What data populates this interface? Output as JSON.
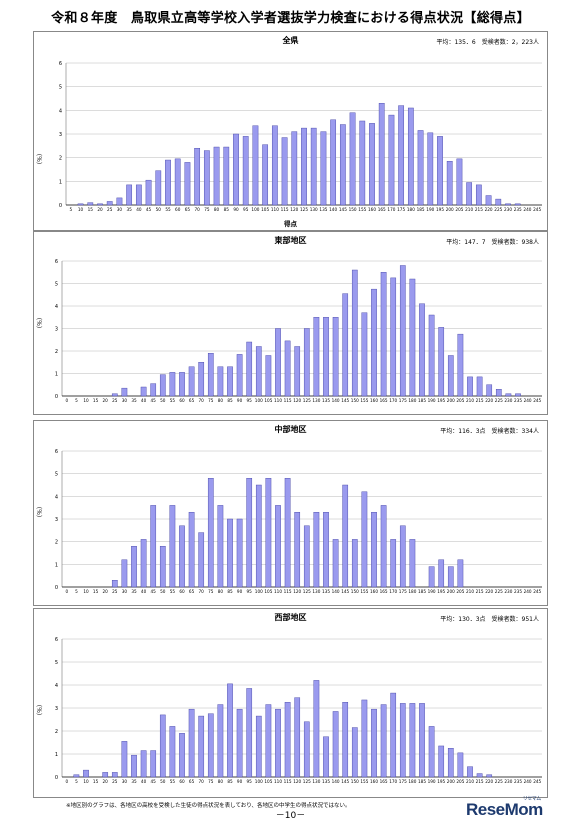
{
  "page": {
    "title": "令和８年度　鳥取県立高等学校入学者選抜学力検査における得点状況【総得点】",
    "note": "※地区別のグラフは、各地区の高校を受検した生徒の得点状況を表しており、各地区の中学生の得点状況ではない。",
    "page_number": "－10－",
    "logo": "ReseMom",
    "logo_small": "リセマム"
  },
  "colors": {
    "bar_fill": "#9a9aee",
    "bar_stroke": "#3c3ca0",
    "grid": "#b8b8b8",
    "axis": "#000000"
  },
  "chart_data": [
    {
      "type": "bar",
      "title": "全県",
      "stats": "平均：135．6　受検者数：2，223人",
      "ylabel": "（％）",
      "xlabel": "得点",
      "ylim": [
        0,
        6
      ],
      "yticks": [
        "0",
        "1",
        "2",
        "3",
        "4",
        "5",
        "6"
      ],
      "grid": true,
      "categories": [
        "5",
        "10",
        "15",
        "20",
        "25",
        "30",
        "35",
        "40",
        "45",
        "50",
        "55",
        "60",
        "65",
        "70",
        "75",
        "80",
        "85",
        "90",
        "95",
        "100",
        "105",
        "110",
        "115",
        "120",
        "125",
        "130",
        "135",
        "140",
        "145",
        "150",
        "155",
        "160",
        "165",
        "170",
        "175",
        "180",
        "185",
        "190",
        "195",
        "200",
        "205",
        "210",
        "215",
        "220",
        "225",
        "230",
        "235",
        "240",
        "245"
      ],
      "values": [
        0,
        0.05,
        0.1,
        0.05,
        0.15,
        0.3,
        0.85,
        0.85,
        1.05,
        1.45,
        1.9,
        1.95,
        1.8,
        2.4,
        2.3,
        2.45,
        2.45,
        3.0,
        2.9,
        3.35,
        2.55,
        3.35,
        2.85,
        3.1,
        3.25,
        3.25,
        3.1,
        3.6,
        3.4,
        3.9,
        3.55,
        3.45,
        4.3,
        3.8,
        4.2,
        4.1,
        3.15,
        3.05,
        2.9,
        1.85,
        1.95,
        0.95,
        0.85,
        0.4,
        0.25,
        0.05,
        0.05,
        0,
        0
      ]
    },
    {
      "type": "bar",
      "title": "東部地区",
      "stats": "平均：147．7　受検者数：938人",
      "ylabel": "（％）",
      "xlabel": "得点",
      "ylim": [
        0,
        6
      ],
      "yticks": [
        "0",
        "1",
        "2",
        "3",
        "4",
        "5",
        "6"
      ],
      "grid": true,
      "categories": [
        "0",
        "5",
        "10",
        "15",
        "20",
        "25",
        "30",
        "35",
        "40",
        "45",
        "50",
        "55",
        "60",
        "65",
        "70",
        "75",
        "80",
        "85",
        "90",
        "95",
        "100",
        "105",
        "110",
        "115",
        "120",
        "125",
        "130",
        "135",
        "140",
        "145",
        "150",
        "155",
        "160",
        "165",
        "170",
        "175",
        "180",
        "185",
        "190",
        "195",
        "200",
        "205",
        "210",
        "215",
        "220",
        "225",
        "230",
        "235",
        "240",
        "245"
      ],
      "values": [
        0,
        0,
        0,
        0,
        0,
        0.1,
        0.35,
        0,
        0.4,
        0.55,
        0.95,
        1.05,
        1.05,
        1.3,
        1.5,
        1.9,
        1.3,
        1.3,
        1.85,
        2.4,
        2.2,
        1.8,
        3.0,
        2.45,
        2.2,
        3.0,
        3.5,
        3.5,
        3.5,
        4.55,
        5.6,
        3.7,
        4.75,
        5.5,
        5.25,
        5.8,
        5.2,
        4.1,
        3.6,
        3.05,
        1.8,
        2.75,
        0.85,
        0.85,
        0.5,
        0.3,
        0.1,
        0.1,
        0,
        0
      ]
    },
    {
      "type": "bar",
      "title": "中部地区",
      "stats": "平均：116．3点　受検者数：334人",
      "ylabel": "（％）",
      "xlabel": "得点",
      "ylim": [
        0,
        6
      ],
      "yticks": [
        "0",
        "1",
        "2",
        "3",
        "4",
        "5",
        "6"
      ],
      "grid": true,
      "categories": [
        "0",
        "5",
        "10",
        "15",
        "20",
        "25",
        "30",
        "35",
        "40",
        "45",
        "50",
        "55",
        "60",
        "65",
        "70",
        "75",
        "80",
        "85",
        "90",
        "95",
        "100",
        "105",
        "110",
        "115",
        "120",
        "125",
        "130",
        "135",
        "140",
        "145",
        "150",
        "155",
        "160",
        "165",
        "170",
        "175",
        "180",
        "185",
        "190",
        "195",
        "200",
        "205",
        "210",
        "215",
        "220",
        "225",
        "230",
        "235",
        "240",
        "245"
      ],
      "values": [
        0,
        0,
        0,
        0,
        0,
        0.3,
        1.2,
        1.8,
        2.1,
        3.6,
        1.8,
        3.6,
        2.7,
        3.3,
        2.4,
        4.8,
        3.6,
        3.0,
        3.0,
        4.8,
        4.5,
        4.8,
        3.6,
        4.8,
        3.3,
        2.7,
        3.3,
        3.3,
        2.1,
        4.5,
        2.1,
        4.2,
        3.3,
        3.6,
        2.1,
        2.7,
        2.1,
        0,
        0.9,
        1.2,
        0.9,
        1.2,
        0,
        0,
        0,
        0,
        0,
        0,
        0,
        0
      ]
    },
    {
      "type": "bar",
      "title": "西部地区",
      "stats": "平均：130．3点　受検者数：951人",
      "ylabel": "（％）",
      "xlabel": "得点",
      "ylim": [
        0,
        6
      ],
      "yticks": [
        "0",
        "1",
        "2",
        "3",
        "4",
        "5",
        "6"
      ],
      "grid": true,
      "categories": [
        "0",
        "5",
        "10",
        "15",
        "20",
        "25",
        "30",
        "35",
        "40",
        "45",
        "50",
        "55",
        "60",
        "65",
        "70",
        "75",
        "80",
        "85",
        "90",
        "95",
        "100",
        "105",
        "110",
        "115",
        "120",
        "125",
        "130",
        "135",
        "140",
        "145",
        "150",
        "155",
        "160",
        "165",
        "170",
        "175",
        "180",
        "185",
        "190",
        "195",
        "200",
        "205",
        "210",
        "215",
        "220",
        "225",
        "230",
        "235",
        "240",
        "245"
      ],
      "values": [
        0,
        0.1,
        0.3,
        0,
        0.2,
        0.2,
        1.55,
        0.95,
        1.15,
        1.15,
        2.7,
        2.2,
        1.9,
        2.95,
        2.65,
        2.75,
        3.15,
        4.05,
        2.95,
        3.85,
        2.65,
        3.15,
        2.95,
        3.25,
        3.45,
        2.4,
        4.2,
        1.75,
        2.85,
        3.25,
        2.15,
        3.35,
        2.95,
        3.15,
        3.65,
        3.2,
        3.2,
        3.2,
        2.2,
        1.35,
        1.25,
        1.05,
        0.45,
        0.15,
        0.1,
        0,
        0,
        0,
        0,
        0
      ]
    }
  ]
}
